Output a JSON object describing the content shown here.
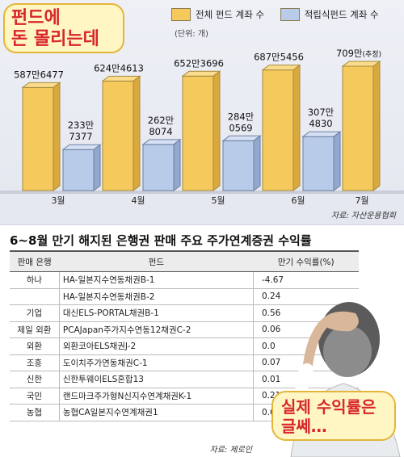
{
  "callout": {
    "line1": "펀드에",
    "line2": "돈 몰리는데"
  },
  "chart_data": {
    "type": "bar",
    "categories": [
      "3월",
      "4월",
      "5월",
      "6월",
      "7월"
    ],
    "series": [
      {
        "name": "전체 펀드 계좌 수",
        "values": [
          5876477,
          6244613,
          6523696,
          6875456,
          7090000
        ],
        "labels": [
          "587만6477",
          "624만4613",
          "652만3696",
          "687만5456",
          "709만"
        ],
        "notes": [
          "",
          "",
          "",
          "",
          "(추정)"
        ]
      },
      {
        "name": "적립식펀드 계좌 수",
        "values": [
          2337377,
          2628074,
          2840569,
          3074830,
          null
        ],
        "labels": [
          "233만 7377",
          "262만 8074",
          "284만 0569",
          "307만 4830",
          ""
        ]
      }
    ],
    "unit": "(단위: 개)",
    "source": "자료: 자산운용협회"
  },
  "colors": {
    "total": "#f5c95c",
    "installment": "#b8cbe8",
    "accent": "#d8262a"
  },
  "table": {
    "title": "6~8월 만기 해지된 은행권 판매 주요 주가연계증권 수익률",
    "headers": [
      "판매 은행",
      "펀드",
      "만기 수익률(%)"
    ],
    "rows": [
      {
        "bank": "하나",
        "fund": "HA-일본지수연동채권B-1",
        "ret": "-4.67"
      },
      {
        "bank": "",
        "fund": "HA-일본지수연동채권B-2",
        "ret": "0.24"
      },
      {
        "bank": "기업",
        "fund": "대신ELS-PORTAL채권B-1",
        "ret": "0.56"
      },
      {
        "bank": "제일 외환",
        "fund": "PCAJapan주가지수연동12채권C-2",
        "ret": "0.06"
      },
      {
        "bank": "외환",
        "fund": "외환코아ELS채권J-2",
        "ret": "0.0"
      },
      {
        "bank": "조흥",
        "fund": "도이치주가연동채권C-1",
        "ret": "0.07"
      },
      {
        "bank": "신한",
        "fund": "신한투웨이ELS혼합13",
        "ret": "0.01"
      },
      {
        "bank": "국민",
        "fund": "랜드마크주가형N신지수연계채권K-1",
        "ret": "0.21"
      },
      {
        "bank": "농협",
        "fund": "농협CA일본지수연계채권1",
        "ret": "0.66"
      }
    ],
    "source": "자료: 제로인"
  },
  "bubble": {
    "line1": "실제 수익률은",
    "line2": "글쎄…"
  },
  "icons": {
    "illustration": "worried-man-illustration"
  }
}
